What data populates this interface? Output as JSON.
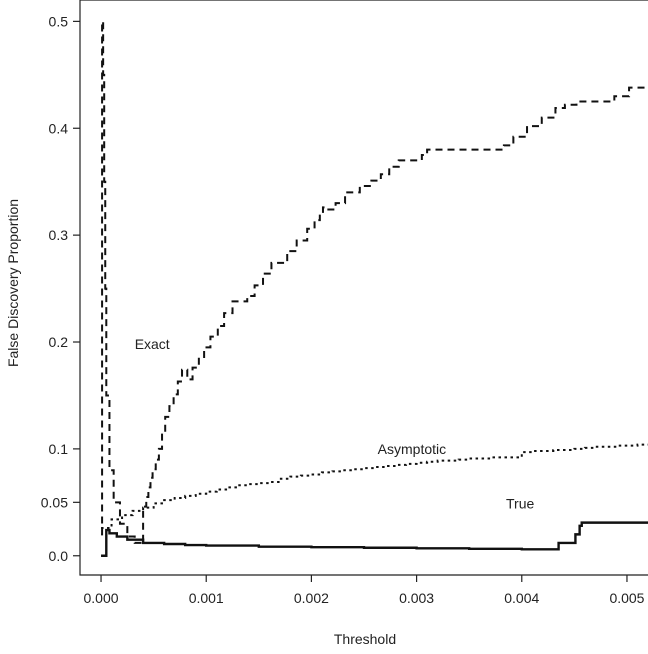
{
  "chart_data": {
    "type": "line",
    "title": "",
    "xlabel": "Threshold",
    "ylabel": "False Discovery Proportion",
    "xlim": [
      -0.0002,
      0.0052
    ],
    "ylim": [
      -0.018,
      0.52
    ],
    "x_ticks": [
      0.0,
      0.001,
      0.002,
      0.003,
      0.004,
      0.005
    ],
    "x_tick_labels": [
      "0.000",
      "0.001",
      "0.002",
      "0.003",
      "0.004",
      "0.005"
    ],
    "y_ticks": [
      0.0,
      0.05,
      0.1,
      0.2,
      0.3,
      0.4,
      0.5
    ],
    "y_tick_labels": [
      "0.0",
      "0.05",
      "0.1",
      "0.2",
      "0.3",
      "0.4",
      "0.5"
    ],
    "grid": false,
    "annotations": [
      {
        "text": "Exact",
        "x": 0.00032,
        "y": 0.198
      },
      {
        "text": "Asymptotic",
        "x": 0.00263,
        "y": 0.1
      },
      {
        "text": "True",
        "x": 0.00385,
        "y": 0.049
      }
    ],
    "series": [
      {
        "id": "exact",
        "style": "dashed",
        "step": true,
        "x": [
          0.0,
          1e-05,
          2e-05,
          3e-05,
          4e-05,
          5e-05,
          8e-05,
          0.00012,
          0.00018,
          0.00025,
          0.00032,
          0.00039,
          0.0004,
          0.00043,
          0.00045,
          0.00047,
          0.00049,
          0.00052,
          0.00055,
          0.00058,
          0.00061,
          0.00065,
          0.00069,
          0.00073,
          0.00077,
          0.00082,
          0.00087,
          0.00093,
          0.00098,
          0.00104,
          0.00111,
          0.00117,
          0.00125,
          0.00132,
          0.00139,
          0.00146,
          0.00154,
          0.00162,
          0.0017,
          0.00177,
          0.00186,
          0.00196,
          0.00203,
          0.00208,
          0.00211,
          0.00214,
          0.00217,
          0.00223,
          0.00232,
          0.00246,
          0.00257,
          0.00266,
          0.00274,
          0.00283,
          0.00298,
          0.00305,
          0.0031,
          0.00318,
          0.00335,
          0.00346,
          0.00359,
          0.00383,
          0.00392,
          0.00405,
          0.00419,
          0.00422,
          0.00424,
          0.00432,
          0.00441,
          0.00452,
          0.00474,
          0.00488,
          0.00502,
          0.00515,
          0.0052
        ],
        "y": [
          0.02,
          0.5,
          0.45,
          0.35,
          0.25,
          0.15,
          0.08,
          0.05,
          0.03,
          0.018,
          0.012,
          0.011,
          0.046,
          0.055,
          0.064,
          0.073,
          0.081,
          0.09,
          0.1,
          0.115,
          0.13,
          0.14,
          0.151,
          0.163,
          0.174,
          0.165,
          0.176,
          0.186,
          0.195,
          0.205,
          0.215,
          0.227,
          0.238,
          0.238,
          0.243,
          0.253,
          0.264,
          0.274,
          0.274,
          0.285,
          0.295,
          0.306,
          0.314,
          0.32,
          0.326,
          0.324,
          0.324,
          0.33,
          0.34,
          0.346,
          0.351,
          0.357,
          0.364,
          0.37,
          0.37,
          0.375,
          0.38,
          0.38,
          0.38,
          0.38,
          0.38,
          0.384,
          0.392,
          0.402,
          0.41,
          0.41,
          0.41,
          0.419,
          0.422,
          0.425,
          0.425,
          0.43,
          0.438,
          0.438,
          0.438
        ]
      },
      {
        "id": "asymptotic",
        "style": "dotted",
        "step": true,
        "x": [
          0.0,
          0.0001,
          0.0002,
          0.0003,
          0.0004,
          0.0005,
          0.0006,
          0.0007,
          0.0008,
          0.0009,
          0.001,
          0.0011,
          0.0012,
          0.0013,
          0.0014,
          0.0015,
          0.0016,
          0.0017,
          0.0018,
          0.0019,
          0.002,
          0.0021,
          0.0022,
          0.0023,
          0.0024,
          0.0025,
          0.0026,
          0.0027,
          0.0028,
          0.0029,
          0.003,
          0.0031,
          0.0032,
          0.0033,
          0.0034,
          0.0035,
          0.0036,
          0.0037,
          0.0038,
          0.0039,
          0.004,
          0.0041,
          0.0042,
          0.0043,
          0.0044,
          0.0045,
          0.0046,
          0.0047,
          0.0048,
          0.0049,
          0.005,
          0.0051,
          0.0052
        ],
        "y": [
          0.026,
          0.034,
          0.038,
          0.042,
          0.045,
          0.049,
          0.052,
          0.054,
          0.056,
          0.058,
          0.06,
          0.062,
          0.064,
          0.066,
          0.067,
          0.068,
          0.069,
          0.072,
          0.074,
          0.075,
          0.076,
          0.078,
          0.079,
          0.08,
          0.081,
          0.082,
          0.083,
          0.084,
          0.085,
          0.086,
          0.087,
          0.088,
          0.089,
          0.089,
          0.09,
          0.091,
          0.091,
          0.092,
          0.092,
          0.092,
          0.097,
          0.098,
          0.098,
          0.099,
          0.099,
          0.1,
          0.101,
          0.102,
          0.102,
          0.103,
          0.103,
          0.104,
          0.104
        ]
      },
      {
        "id": "true",
        "style": "solid",
        "step": true,
        "x": [
          0.0,
          5e-05,
          5e-05,
          8e-05,
          0.00015,
          0.00025,
          0.0004,
          0.0006,
          0.0008,
          0.001,
          0.0015,
          0.002,
          0.0025,
          0.003,
          0.0035,
          0.004,
          0.00435,
          0.00435,
          0.00449,
          0.00451,
          0.00455,
          0.00457,
          0.005,
          0.0052
        ],
        "y": [
          0.0,
          0.0,
          0.024,
          0.021,
          0.018,
          0.015,
          0.012,
          0.011,
          0.01,
          0.0095,
          0.0085,
          0.008,
          0.0075,
          0.007,
          0.0065,
          0.006,
          0.0065,
          0.012,
          0.012,
          0.02,
          0.028,
          0.031,
          0.031,
          0.03
        ]
      }
    ]
  }
}
